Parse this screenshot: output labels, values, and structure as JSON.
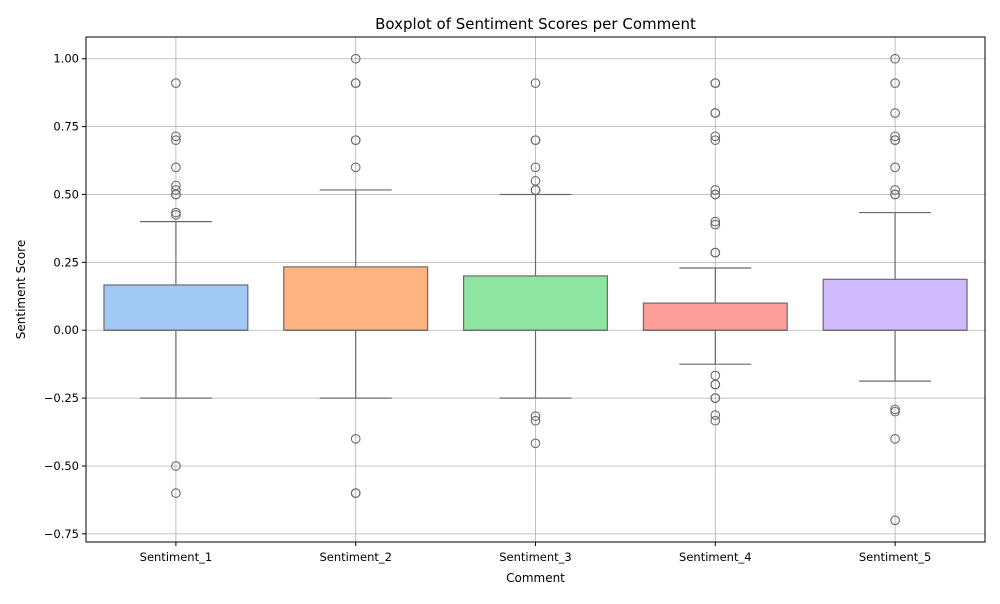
{
  "chart_data": {
    "type": "box",
    "title": "Boxplot of Sentiment Scores per Comment",
    "xlabel": "Comment",
    "ylabel": "Sentiment Score",
    "categories": [
      "Sentiment_1",
      "Sentiment_2",
      "Sentiment_3",
      "Sentiment_4",
      "Sentiment_5"
    ],
    "ylim": [
      -0.78,
      1.08
    ],
    "yticks": [
      -0.75,
      -0.5,
      -0.25,
      0.0,
      0.25,
      0.5,
      0.75,
      1.0
    ],
    "ytick_labels": [
      "−0.75",
      "−0.50",
      "−0.25",
      "0.00",
      "0.25",
      "0.50",
      "0.75",
      "1.00"
    ],
    "grid": true,
    "colors": {
      "Sentiment_1": "#a1c9f4",
      "Sentiment_2": "#ffb482",
      "Sentiment_3": "#8de5a1",
      "Sentiment_4": "#ff9f9b",
      "Sentiment_5": "#d0bbff",
      "line": "#6b6b6b",
      "grid": "#b0b0b0"
    },
    "boxes": [
      {
        "name": "Sentiment_1",
        "whisker_low": -0.25,
        "q1": 0.0,
        "median": 0.0,
        "q3": 0.1667,
        "whisker_high": 0.4,
        "outliers": [
          0.91,
          0.7143,
          0.7,
          0.6,
          0.5333,
          0.5167,
          0.5,
          0.5,
          0.4333,
          0.425,
          -0.5,
          -0.6
        ]
      },
      {
        "name": "Sentiment_2",
        "whisker_low": -0.25,
        "q1": 0.0,
        "median": 0.0,
        "q3": 0.2333,
        "whisker_high": 0.5167,
        "outliers": [
          1.0,
          0.91,
          0.91,
          0.7,
          0.7,
          0.6,
          -0.4,
          -0.6,
          -0.6
        ]
      },
      {
        "name": "Sentiment_3",
        "whisker_low": -0.25,
        "q1": 0.0,
        "median": 0.0,
        "q3": 0.2,
        "whisker_high": 0.5,
        "outliers": [
          0.91,
          0.7,
          0.7,
          0.6,
          0.55,
          0.5167,
          0.5167,
          -0.3167,
          -0.3333,
          -0.4167
        ]
      },
      {
        "name": "Sentiment_4",
        "whisker_low": -0.125,
        "q1": 0.0,
        "median": 0.0,
        "q3": 0.1,
        "whisker_high": 0.2292,
        "outliers": [
          0.91,
          0.91,
          0.8,
          0.8,
          0.7143,
          0.7,
          0.5167,
          0.5,
          0.5,
          0.4,
          0.3889,
          0.2857,
          0.2857,
          -0.1667,
          -0.2,
          -0.2,
          -0.25,
          -0.25,
          -0.3125,
          -0.3333
        ]
      },
      {
        "name": "Sentiment_5",
        "whisker_low": -0.1875,
        "q1": 0.0,
        "median": 0.0,
        "q3": 0.1875,
        "whisker_high": 0.4333,
        "outliers": [
          1.0,
          0.91,
          0.8,
          0.7143,
          0.7,
          0.7,
          0.6,
          0.5167,
          0.5,
          0.5,
          -0.2917,
          -0.3,
          -0.4,
          -0.7
        ]
      }
    ]
  }
}
